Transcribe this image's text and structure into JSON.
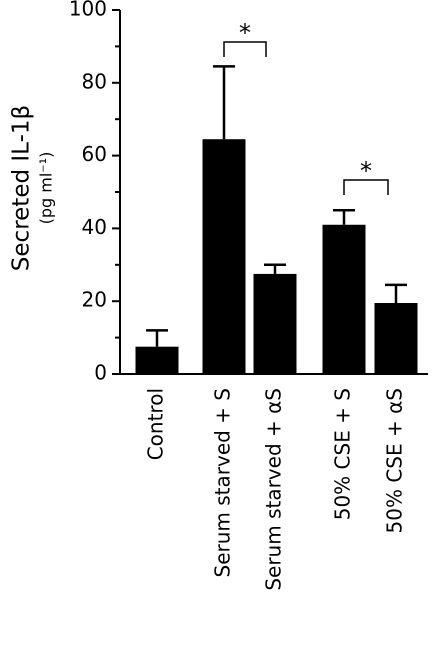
{
  "chart_data": {
    "type": "bar",
    "ylabel": "Secreted IL-1β",
    "yunit": "(pg ml⁻¹)",
    "categories": [
      "Control",
      "Serum starved + S",
      "Serum starved + αS",
      "50% CSE + S",
      "50% CSE + αS"
    ],
    "values": [
      7.5,
      64.5,
      27.5,
      41,
      19.5
    ],
    "errors": [
      4.5,
      20,
      2.5,
      4,
      5
    ],
    "color": "#000000",
    "ylim": [
      0,
      100
    ],
    "yticks": [
      0,
      20,
      40,
      60,
      80,
      100
    ],
    "yticks_minor": [
      10,
      30,
      50,
      70,
      90
    ],
    "annotations": [
      {
        "text": "*"
      },
      {
        "text": "*"
      }
    ]
  }
}
